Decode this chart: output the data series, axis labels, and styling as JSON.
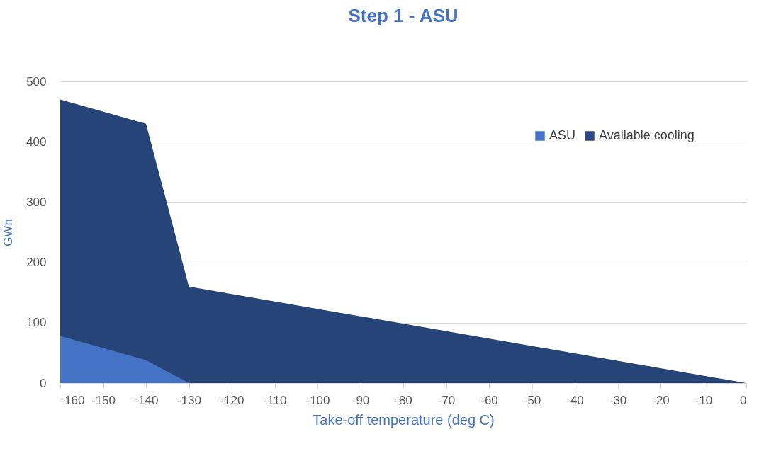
{
  "chart_data": {
    "type": "area",
    "title": "Step 1 - ASU",
    "xlabel": "Take-off temperature (deg C)",
    "ylabel": "GWh",
    "xlim": [
      -160,
      0
    ],
    "xticks": [
      -160,
      -150,
      -140,
      -130,
      -120,
      -110,
      -100,
      -90,
      -80,
      -70,
      -60,
      -50,
      -40,
      -30,
      -20,
      -10,
      0
    ],
    "ylim": [
      0,
      500
    ],
    "yticks": [
      0,
      100,
      200,
      300,
      400,
      500
    ],
    "grid": "y",
    "legend": "top right",
    "series": [
      {
        "name": "ASU",
        "color": "#4472c4",
        "x": [
          -160,
          -140,
          -130,
          0
        ],
        "values": [
          78,
          38,
          0,
          0
        ]
      },
      {
        "name": "Available cooling",
        "color": "#264478",
        "x": [
          -160,
          -140,
          -130,
          0
        ],
        "values": [
          470,
          430,
          160,
          0
        ]
      }
    ]
  }
}
